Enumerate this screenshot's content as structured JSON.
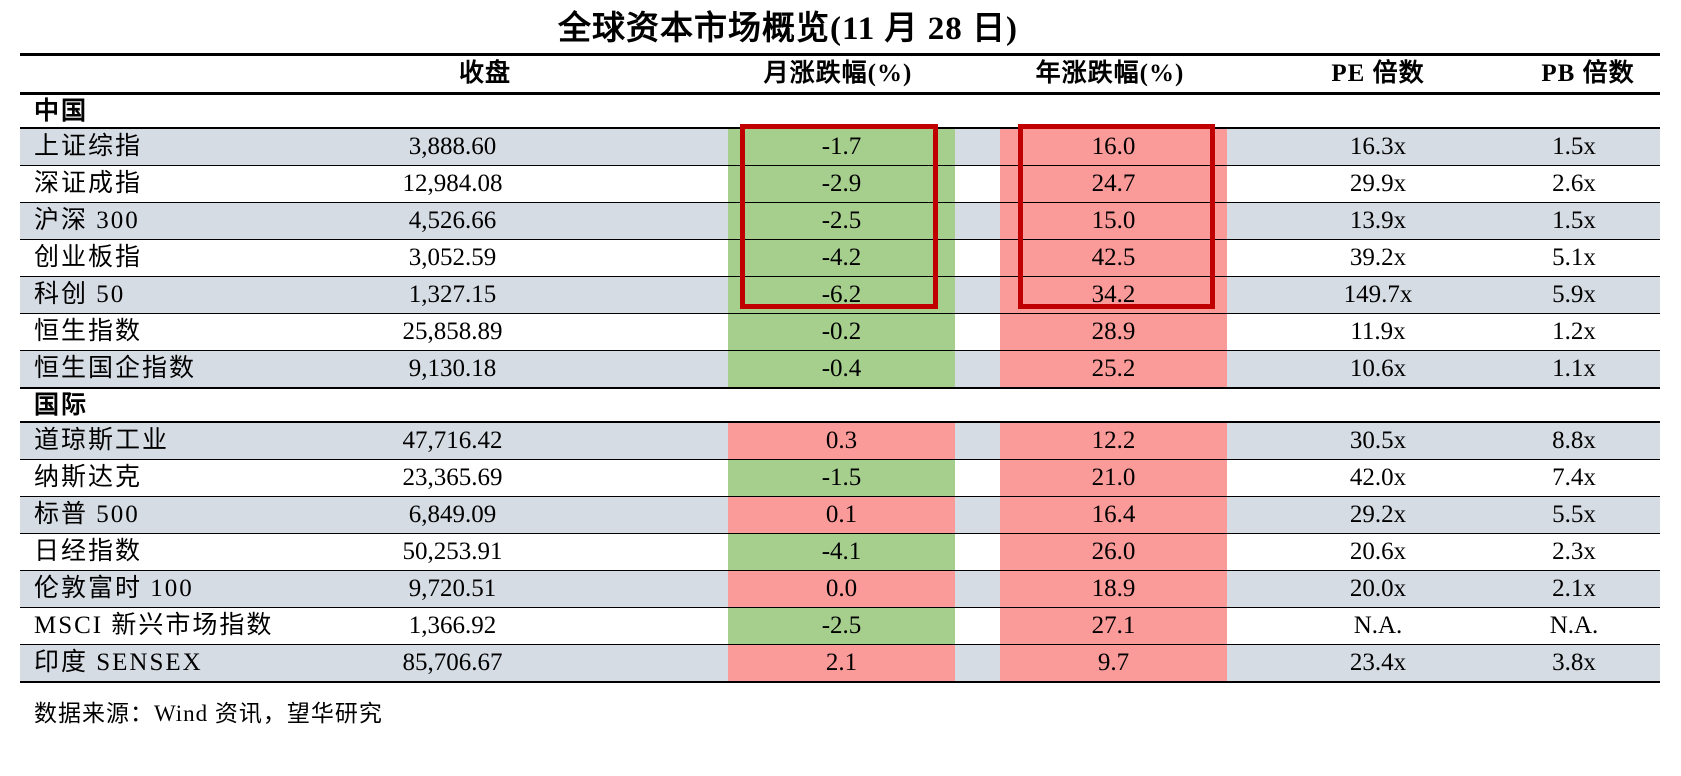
{
  "title": "全球资本市场概览(11 月 28 日)",
  "header": {
    "close": "收盘",
    "month": "月涨跌幅(%)",
    "year": "年涨跌幅(%)",
    "pe": "PE 倍数",
    "pb": "PB 倍数"
  },
  "table": {
    "sections": [
      {
        "id": "china",
        "label": "中国",
        "rows": [
          {
            "name": "上证综指",
            "close": "3,888.60",
            "month": "-1.7",
            "year": "16.0",
            "pe": "16.3x",
            "pb": "1.5x"
          },
          {
            "name": "深证成指",
            "close": "12,984.08",
            "month": "-2.9",
            "year": "24.7",
            "pe": "29.9x",
            "pb": "2.6x"
          },
          {
            "name": "沪深 300",
            "close": "4,526.66",
            "month": "-2.5",
            "year": "15.0",
            "pe": "13.9x",
            "pb": "1.5x"
          },
          {
            "name": "创业板指",
            "close": "3,052.59",
            "month": "-4.2",
            "year": "42.5",
            "pe": "39.2x",
            "pb": "5.1x"
          },
          {
            "name": "科创 50",
            "close": "1,327.15",
            "month": "-6.2",
            "year": "34.2",
            "pe": "149.7x",
            "pb": "5.9x"
          },
          {
            "name": "恒生指数",
            "close": "25,858.89",
            "month": "-0.2",
            "year": "28.9",
            "pe": "11.9x",
            "pb": "1.2x"
          },
          {
            "name": "恒生国企指数",
            "close": "9,130.18",
            "month": "-0.4",
            "year": "25.2",
            "pe": "10.6x",
            "pb": "1.1x"
          }
        ]
      },
      {
        "id": "international",
        "label": "国际",
        "rows": [
          {
            "name": "道琼斯工业",
            "close": "47,716.42",
            "month": "0.3",
            "year": "12.2",
            "pe": "30.5x",
            "pb": "8.8x"
          },
          {
            "name": "纳斯达克",
            "close": "23,365.69",
            "month": "-1.5",
            "year": "21.0",
            "pe": "42.0x",
            "pb": "7.4x"
          },
          {
            "name": "标普 500",
            "close": "6,849.09",
            "month": "0.1",
            "year": "16.4",
            "pe": "29.2x",
            "pb": "5.5x"
          },
          {
            "name": "日经指数",
            "close": "50,253.91",
            "month": "-4.1",
            "year": "26.0",
            "pe": "20.6x",
            "pb": "2.3x"
          },
          {
            "name": "伦敦富时 100",
            "close": "9,720.51",
            "month": "0.0",
            "year": "18.9",
            "pe": "20.0x",
            "pb": "2.1x"
          },
          {
            "name": "MSCI 新兴市场指数",
            "close": "1,366.92",
            "month": "-2.5",
            "year": "27.1",
            "pe": "N.A.",
            "pb": "N.A."
          },
          {
            "name": "印度 SENSEX",
            "close": "85,706.67",
            "month": "2.1",
            "year": "9.7",
            "pe": "23.4x",
            "pb": "3.8x"
          }
        ]
      }
    ]
  },
  "highlight_box": {
    "description": "深红色方框圈出中国A股指数（上证综指 至 科创 50）的月涨跌幅(%)与年涨跌幅(%)",
    "columns": [
      "月涨跌幅(%)",
      "年涨跌幅(%)"
    ],
    "rows": [
      "上证综指",
      "深证成指",
      "沪深 300",
      "创业板指",
      "科创 50"
    ],
    "border_color": "#c00000"
  },
  "footer": {
    "source": "数据来源：Wind 资讯，望华研究"
  },
  "colors": {
    "negative_bg": "#a6cf8e",
    "positive_bg": "#fa9a99",
    "stripe_bg": "#d6dce4",
    "highlight_border": "#c00000",
    "rule": "#000000"
  }
}
